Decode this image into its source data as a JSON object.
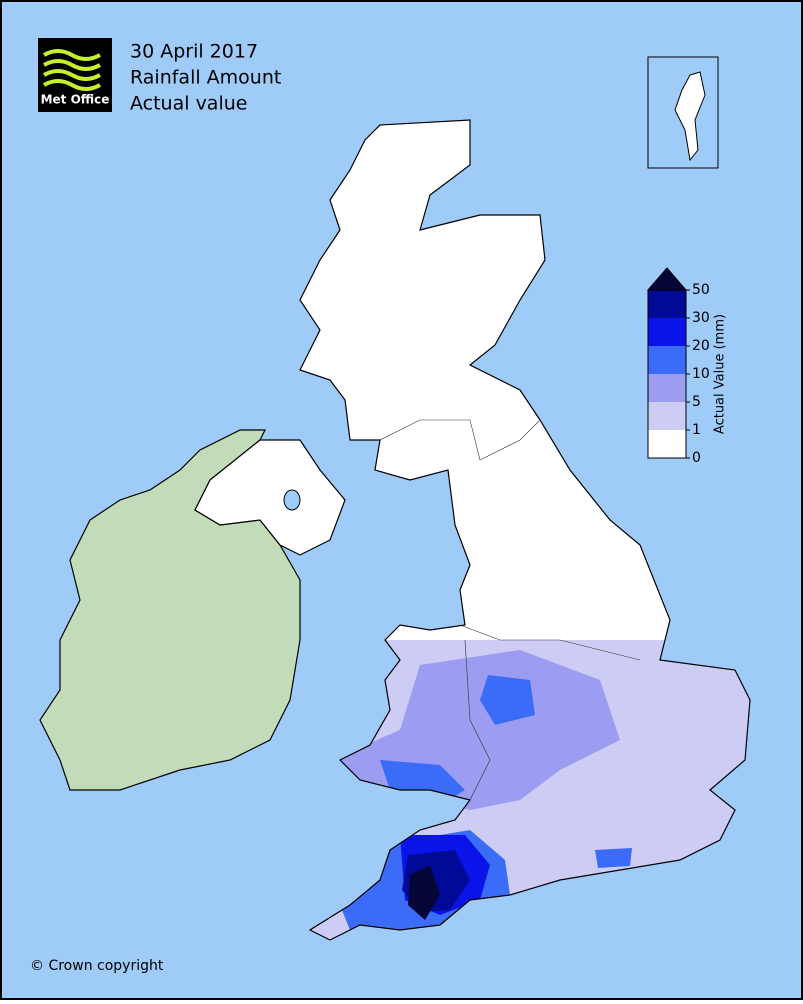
{
  "header": {
    "logo": "Met Office",
    "title_lines": [
      "30 April 2017",
      "Rainfall Amount",
      "Actual value"
    ]
  },
  "legend": {
    "label": "Actual Value (mm)",
    "ticks": [
      0,
      1,
      5,
      10,
      20,
      30,
      50
    ],
    "colors": [
      "#ffffff",
      "#ccccf5",
      "#9c9cf2",
      "#3a6cf7",
      "#0a14e8",
      "#000a96"
    ],
    "extend_color": "#050538"
  },
  "footer": {
    "copyright": "© Crown copyright"
  }
}
